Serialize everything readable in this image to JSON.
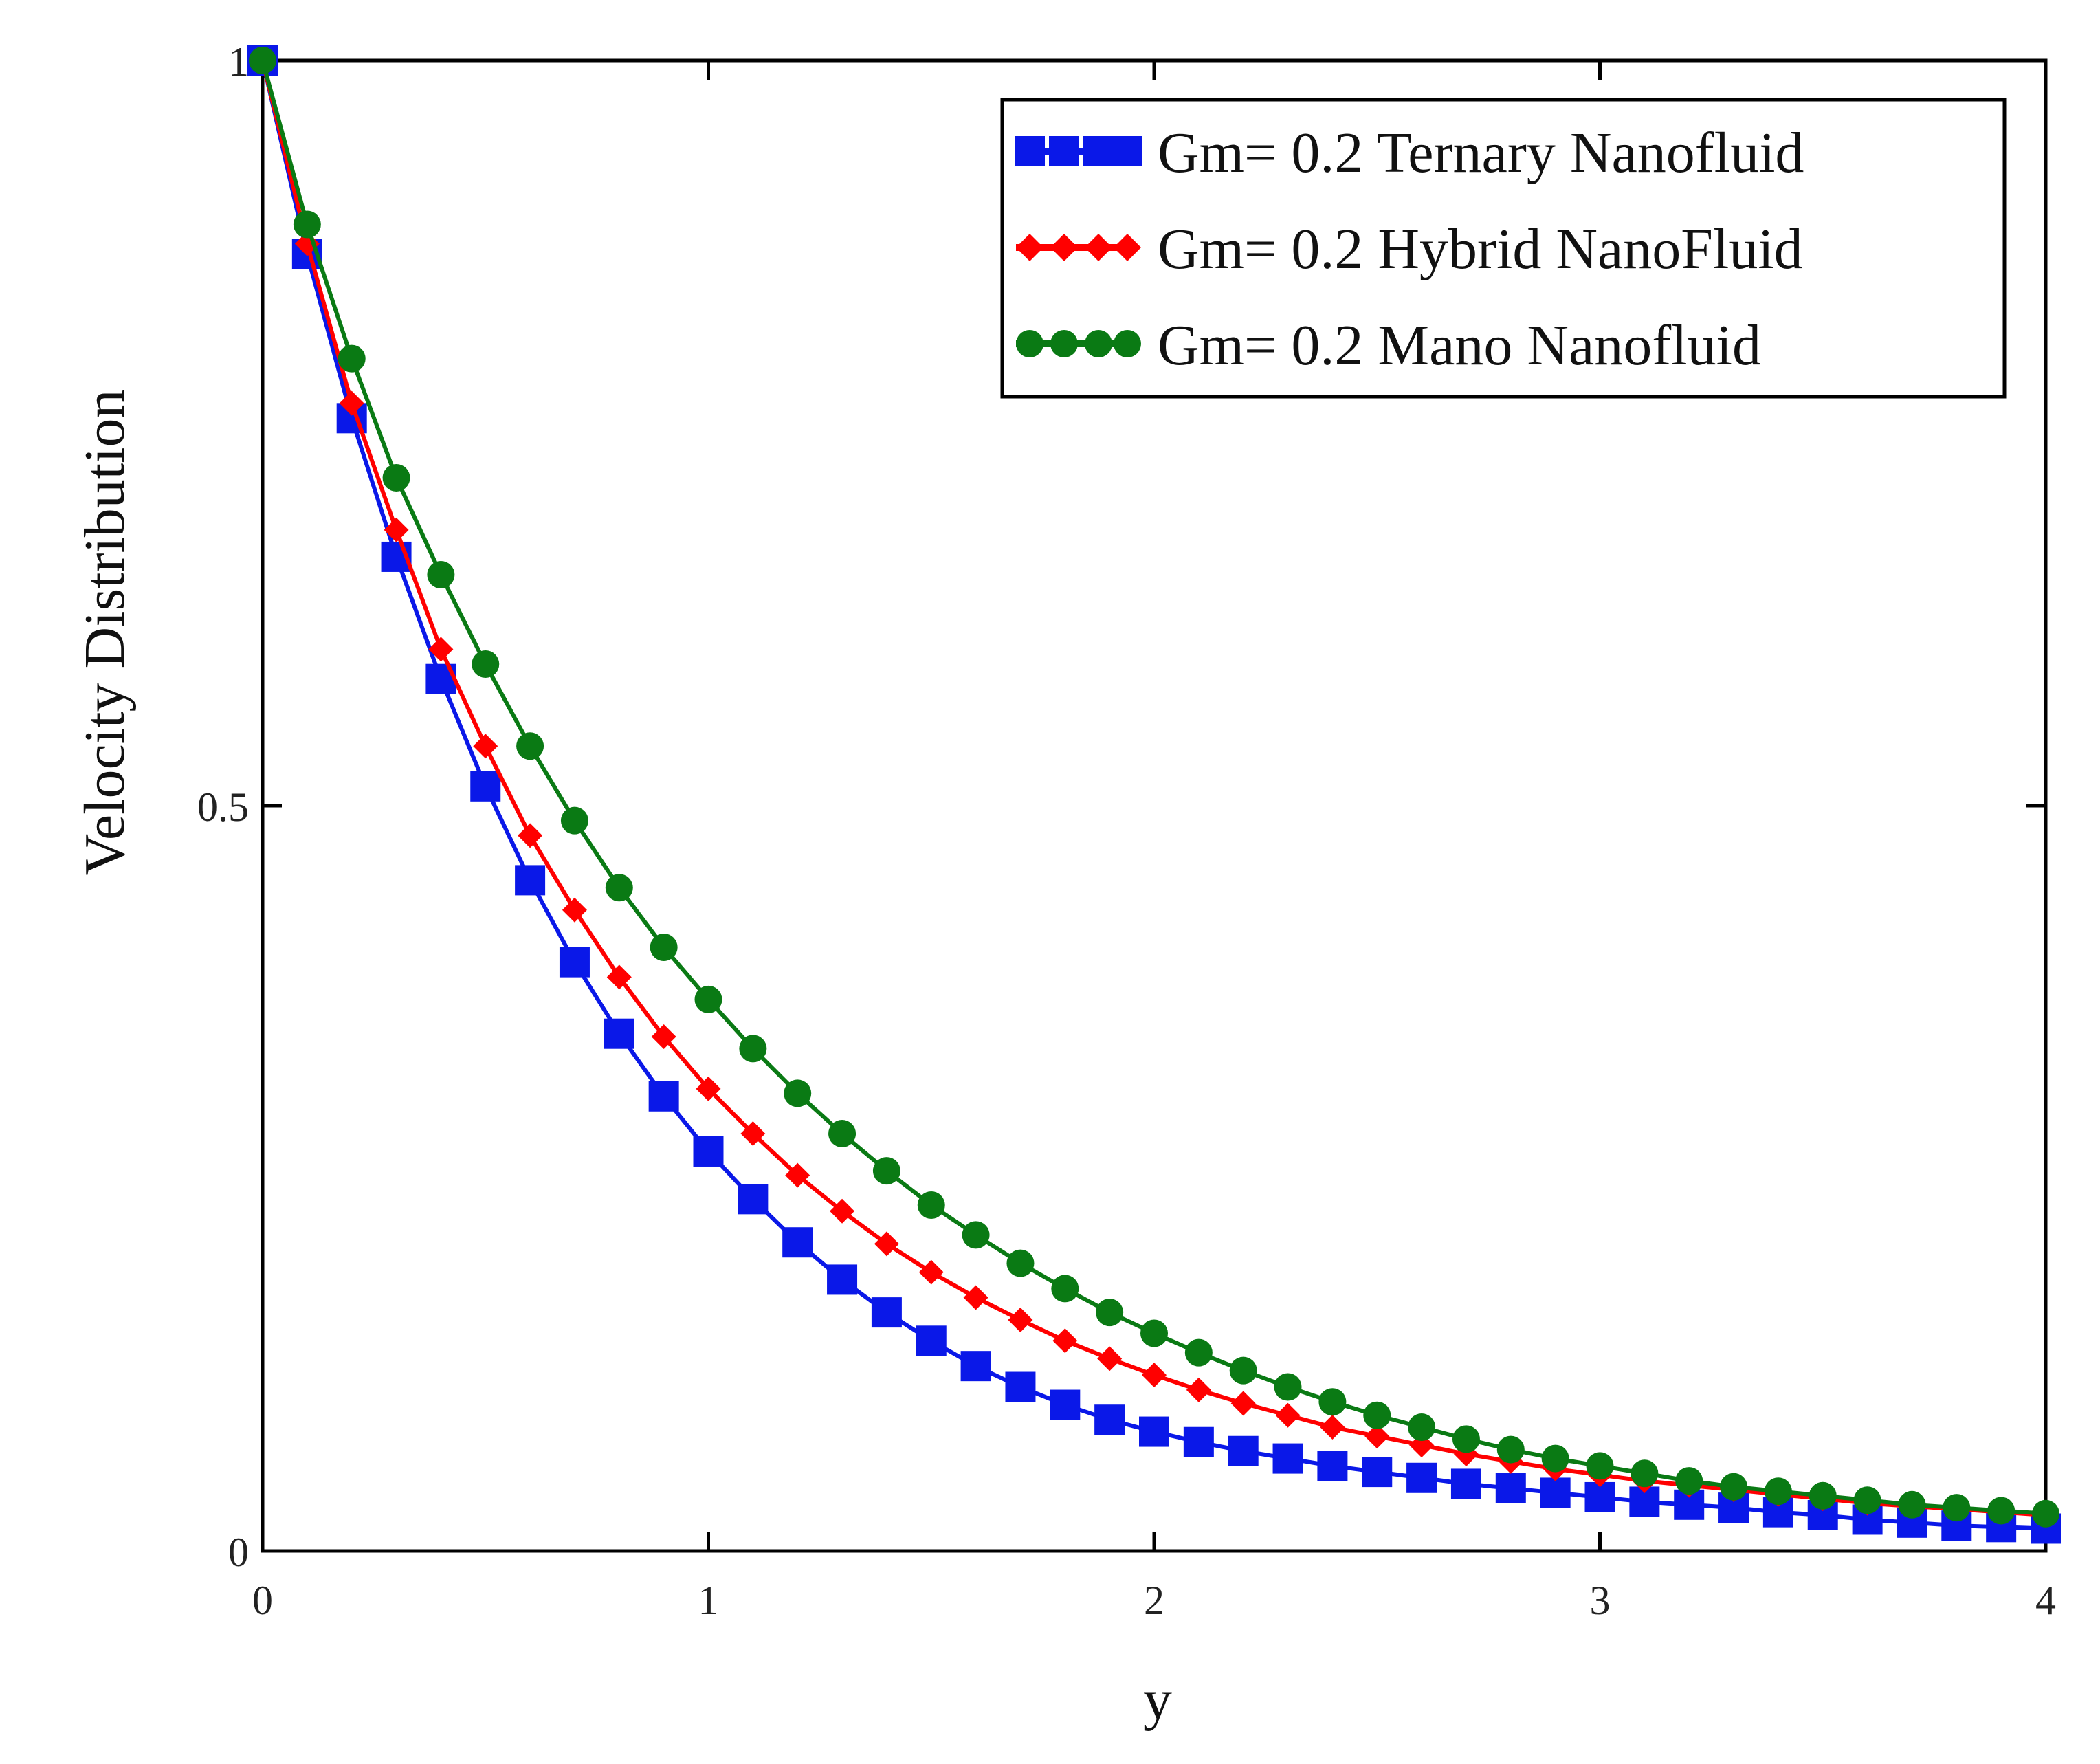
{
  "chart_data": {
    "type": "line",
    "title": "",
    "xlabel": "y",
    "ylabel": "Velocity  Distribution",
    "xlim": [
      0,
      4
    ],
    "ylim": [
      0,
      1
    ],
    "grid": false,
    "legend_position": "top-right",
    "x_ticks": [
      {
        "value": 0,
        "label": "0"
      },
      {
        "value": 1,
        "label": "1"
      },
      {
        "value": 2,
        "label": "2"
      },
      {
        "value": 3,
        "label": "3"
      },
      {
        "value": 4,
        "label": "4"
      }
    ],
    "y_ticks": [
      {
        "value": 0,
        "label": "0"
      },
      {
        "value": 0.5,
        "label": "0.5"
      },
      {
        "value": 1,
        "label": "1"
      }
    ],
    "x": [
      0,
      0.1,
      0.2,
      0.3,
      0.4,
      0.5,
      0.6,
      0.7,
      0.8,
      0.9,
      1.0,
      1.1,
      1.2,
      1.3,
      1.4,
      1.5,
      1.6,
      1.7,
      1.8,
      1.9,
      2.0,
      2.1,
      2.2,
      2.3,
      2.4,
      2.5,
      2.6,
      2.7,
      2.8,
      2.9,
      3.0,
      3.1,
      3.2,
      3.3,
      3.4,
      3.5,
      3.6,
      3.7,
      3.8,
      3.9,
      4.0
    ],
    "series": [
      {
        "name": "Gm= 0.2 Ternary Nanofluid",
        "color": "#0a18e8",
        "marker": "square",
        "values": [
          1.0,
          0.87,
          0.76,
          0.667,
          0.585,
          0.513,
          0.45,
          0.395,
          0.347,
          0.305,
          0.268,
          0.236,
          0.207,
          0.182,
          0.16,
          0.141,
          0.124,
          0.11,
          0.098,
          0.088,
          0.08,
          0.073,
          0.067,
          0.062,
          0.057,
          0.053,
          0.049,
          0.045,
          0.042,
          0.039,
          0.036,
          0.033,
          0.031,
          0.029,
          0.026,
          0.024,
          0.021,
          0.019,
          0.017,
          0.016,
          0.015
        ]
      },
      {
        "name": "Gm= 0.2 Hybrid NanoFluid",
        "color": "#ff0000",
        "marker": "diamond",
        "values": [
          1.0,
          0.877,
          0.77,
          0.685,
          0.605,
          0.54,
          0.48,
          0.43,
          0.385,
          0.345,
          0.31,
          0.28,
          0.252,
          0.228,
          0.206,
          0.187,
          0.17,
          0.155,
          0.141,
          0.129,
          0.118,
          0.108,
          0.099,
          0.091,
          0.083,
          0.077,
          0.071,
          0.065,
          0.06,
          0.055,
          0.051,
          0.047,
          0.044,
          0.041,
          0.038,
          0.035,
          0.032,
          0.03,
          0.028,
          0.026,
          0.024
        ]
      },
      {
        "name": "Gm= 0.2  Mano Nanofluid",
        "color": "#0a7a14",
        "marker": "circle",
        "values": [
          1.0,
          0.89,
          0.8,
          0.72,
          0.655,
          0.595,
          0.54,
          0.49,
          0.445,
          0.405,
          0.37,
          0.337,
          0.307,
          0.28,
          0.255,
          0.232,
          0.212,
          0.193,
          0.176,
          0.16,
          0.146,
          0.133,
          0.121,
          0.11,
          0.1,
          0.091,
          0.083,
          0.075,
          0.068,
          0.062,
          0.057,
          0.052,
          0.047,
          0.043,
          0.04,
          0.037,
          0.034,
          0.031,
          0.029,
          0.027,
          0.025
        ]
      }
    ]
  }
}
